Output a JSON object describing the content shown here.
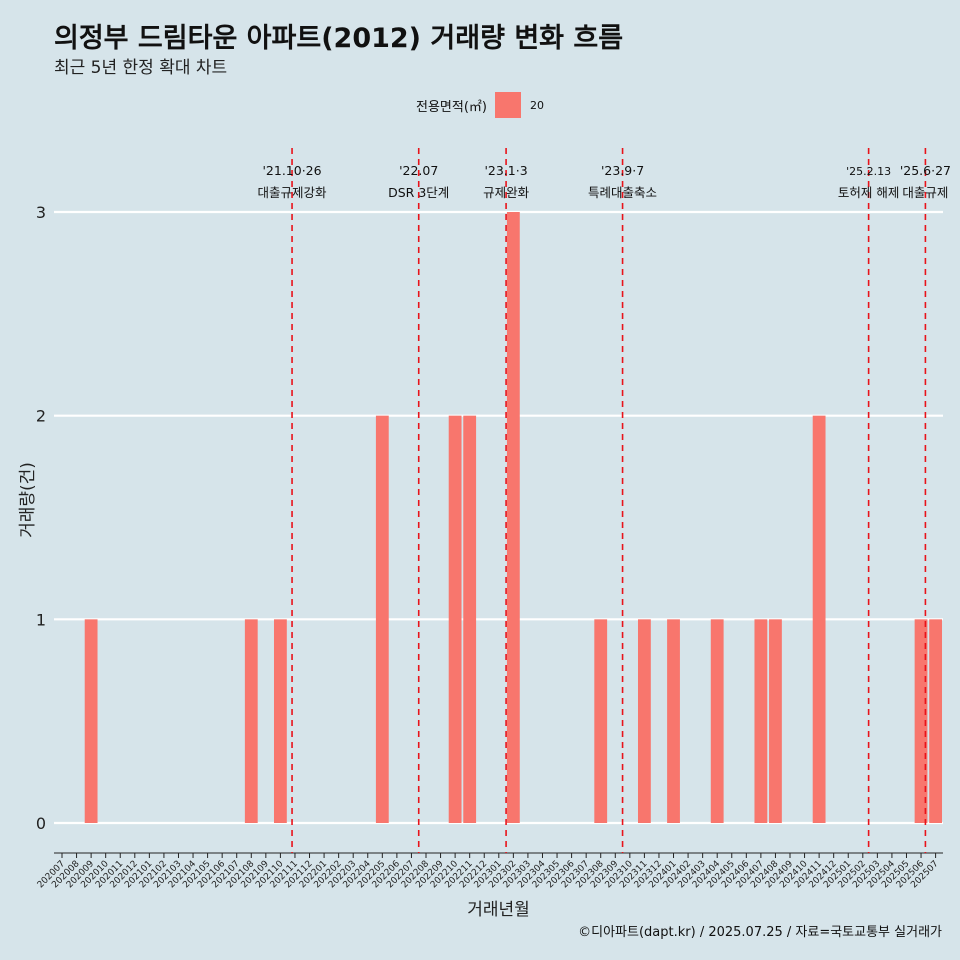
{
  "chart_data": {
    "type": "bar",
    "title": "의정부 드림타운 아파트(2012) 거래량 변화 흐름",
    "subtitle": "최근 5년 한정 확대 차트",
    "xlabel": "거래년월",
    "ylabel": "거래량(건)",
    "ylim": [
      0,
      3
    ],
    "yticks": [
      0,
      1,
      2,
      3
    ],
    "grid": true,
    "legend": {
      "title": "전용면적(㎡)",
      "entries": [
        "20"
      ],
      "position": "top"
    },
    "series": [
      {
        "name": "20",
        "color": "#f8766d"
      }
    ],
    "categories": [
      "202007",
      "202008",
      "202009",
      "202010",
      "202011",
      "202012",
      "202101",
      "202102",
      "202103",
      "202104",
      "202105",
      "202106",
      "202107",
      "202108",
      "202109",
      "202110",
      "202111",
      "202112",
      "202201",
      "202202",
      "202203",
      "202204",
      "202205",
      "202206",
      "202207",
      "202208",
      "202209",
      "202210",
      "202211",
      "202212",
      "202301",
      "202302",
      "202303",
      "202304",
      "202305",
      "202306",
      "202307",
      "202308",
      "202309",
      "202310",
      "202311",
      "202312",
      "202401",
      "202402",
      "202403",
      "202404",
      "202405",
      "202406",
      "202407",
      "202408",
      "202409",
      "202410",
      "202411",
      "202412",
      "202501",
      "202502",
      "202503",
      "202504",
      "202505",
      "202506",
      "202507"
    ],
    "values": [
      0,
      0,
      1,
      0,
      0,
      0,
      0,
      0,
      0,
      0,
      0,
      0,
      0,
      1,
      0,
      1,
      0,
      0,
      0,
      0,
      0,
      0,
      2,
      0,
      0,
      0,
      0,
      2,
      2,
      0,
      0,
      3,
      0,
      0,
      0,
      0,
      0,
      1,
      0,
      0,
      1,
      0,
      1,
      0,
      0,
      1,
      0,
      0,
      1,
      1,
      0,
      0,
      2,
      0,
      0,
      0,
      0,
      0,
      0,
      1,
      1
    ],
    "annotations": [
      {
        "date": "2021-10-26",
        "index": 15.8,
        "label_top": "'21.10·26",
        "label_bottom": "대출규제강화"
      },
      {
        "date": "2022-07",
        "index": 24.5,
        "label_top": "'22.07",
        "label_bottom": "DSR 3단계"
      },
      {
        "date": "2023-01-03",
        "index": 30.5,
        "label_top": "'23.1·3",
        "label_bottom": "규제완화"
      },
      {
        "date": "2023-09-07",
        "index": 38.5,
        "label_top": "'23.9·7",
        "label_bottom": "특례대출축소"
      },
      {
        "date": "2025-02-13",
        "index": 55.4,
        "label_top": "'25.2.13",
        "label_bottom": "토허제 해제"
      },
      {
        "date": "2025-06-27",
        "index": 59.3,
        "label_top": "'25.6·27",
        "label_bottom": "대출규제"
      }
    ]
  },
  "caption": "©디아파트(dapt.kr) / 2025.07.25 / 자료=국토교통부 실거래가"
}
